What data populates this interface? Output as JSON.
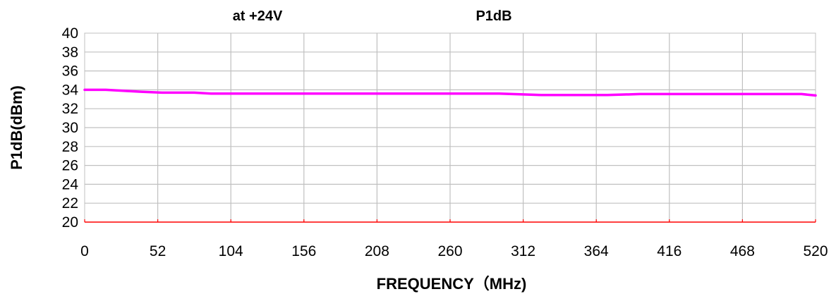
{
  "chart_data": {
    "type": "line",
    "title_left": "at +24V",
    "title_right": "P1dB",
    "xlabel": "FREQUENCY（MHz)",
    "ylabel": "P1dB(dBm)",
    "xlim": [
      0,
      520
    ],
    "ylim": [
      20,
      40
    ],
    "x_ticks": [
      "0",
      "52",
      "104",
      "156",
      "208",
      "260",
      "312",
      "364",
      "416",
      "468",
      "520"
    ],
    "y_ticks": [
      "20",
      "22",
      "24",
      "26",
      "28",
      "30",
      "32",
      "34",
      "36",
      "38",
      "40"
    ],
    "grid": true,
    "series": [
      {
        "color": "#ff00ff",
        "x": [
          0,
          15,
          40,
          55,
          78,
          90,
          150,
          260,
          295,
          325,
          372,
          395,
          450,
          510,
          520
        ],
        "y": [
          34.0,
          34.0,
          33.8,
          33.7,
          33.7,
          33.6,
          33.6,
          33.6,
          33.6,
          33.45,
          33.45,
          33.55,
          33.55,
          33.55,
          33.4
        ]
      }
    ],
    "colors": {
      "baseline": "#ff0000",
      "grid": "#c0c0c0"
    }
  }
}
